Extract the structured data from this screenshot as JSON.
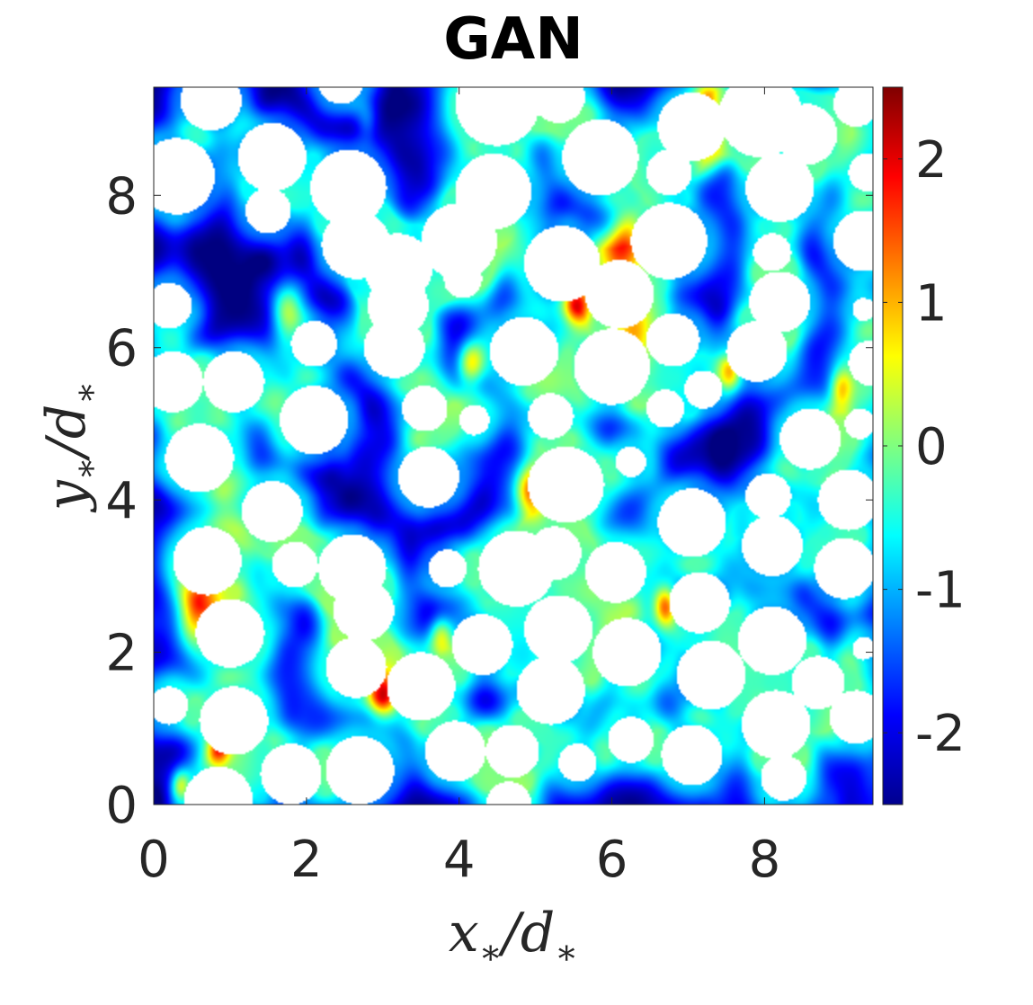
{
  "chart_data": {
    "type": "heatmap",
    "title": "GAN",
    "xlabel": {
      "main": "x",
      "sub": "∗",
      "sep": "/",
      "den": "d",
      "den_sub": "∗"
    },
    "ylabel": {
      "main": "y",
      "sub": "∗",
      "sep": "/",
      "den": "d",
      "den_sub": "∗"
    },
    "xlim": [
      0,
      9.42
    ],
    "ylim": [
      0,
      9.42
    ],
    "x_ticks": [
      0,
      2,
      4,
      6,
      8
    ],
    "y_ticks": [
      0,
      2,
      4,
      6,
      8
    ],
    "x_tick_labels": [
      "0",
      "2",
      "4",
      "6",
      "8"
    ],
    "y_tick_labels": [
      "0",
      "2",
      "4",
      "6",
      "8"
    ],
    "colorbar": {
      "colormap": "jet",
      "clim": [
        -2.5,
        2.5
      ],
      "ticks": [
        -2,
        -1,
        0,
        1,
        2
      ],
      "tick_labels": [
        "-2",
        "-1",
        "0",
        "1",
        "2"
      ]
    },
    "particles": [
      [
        0.75,
        9.25,
        0.4
      ],
      [
        2.45,
        9.5,
        0.3
      ],
      [
        4.5,
        9.2,
        0.55
      ],
      [
        5.3,
        9.3,
        0.35
      ],
      [
        7.95,
        9.05,
        0.55
      ],
      [
        9.2,
        9.2,
        0.3
      ],
      [
        0.3,
        8.25,
        0.5
      ],
      [
        1.55,
        8.5,
        0.45
      ],
      [
        2.55,
        8.1,
        0.5
      ],
      [
        4.45,
        8.05,
        0.5
      ],
      [
        5.85,
        8.5,
        0.5
      ],
      [
        6.75,
        8.3,
        0.3
      ],
      [
        7.05,
        8.9,
        0.45
      ],
      [
        8.2,
        8.1,
        0.45
      ],
      [
        8.55,
        8.8,
        0.4
      ],
      [
        9.35,
        8.3,
        0.25
      ],
      [
        1.5,
        7.8,
        0.3
      ],
      [
        2.65,
        7.35,
        0.45
      ],
      [
        3.2,
        7.05,
        0.45
      ],
      [
        4.0,
        7.4,
        0.5
      ],
      [
        5.35,
        7.1,
        0.5
      ],
      [
        6.75,
        7.4,
        0.5
      ],
      [
        8.1,
        7.25,
        0.25
      ],
      [
        9.3,
        7.4,
        0.4
      ],
      [
        4.05,
        6.9,
        0.25
      ],
      [
        6.1,
        6.7,
        0.45
      ],
      [
        6.8,
        6.1,
        0.35
      ],
      [
        8.2,
        6.6,
        0.4
      ],
      [
        9.3,
        6.5,
        0.15
      ],
      [
        0.2,
        6.55,
        0.3
      ],
      [
        3.2,
        6.55,
        0.4
      ],
      [
        2.1,
        6.05,
        0.3
      ],
      [
        3.15,
        6.0,
        0.4
      ],
      [
        4.85,
        5.95,
        0.45
      ],
      [
        6.0,
        5.75,
        0.5
      ],
      [
        7.9,
        5.95,
        0.4
      ],
      [
        9.4,
        5.8,
        0.3
      ],
      [
        0.25,
        5.55,
        0.4
      ],
      [
        1.05,
        5.55,
        0.4
      ],
      [
        2.1,
        5.05,
        0.45
      ],
      [
        3.55,
        5.2,
        0.3
      ],
      [
        4.2,
        5.05,
        0.2
      ],
      [
        5.2,
        5.1,
        0.3
      ],
      [
        6.7,
        5.2,
        0.25
      ],
      [
        7.2,
        5.45,
        0.25
      ],
      [
        8.6,
        4.8,
        0.4
      ],
      [
        9.25,
        5.0,
        0.2
      ],
      [
        0.6,
        4.55,
        0.45
      ],
      [
        3.6,
        4.3,
        0.4
      ],
      [
        5.4,
        4.2,
        0.5
      ],
      [
        6.25,
        4.5,
        0.2
      ],
      [
        8.05,
        4.05,
        0.3
      ],
      [
        9.1,
        4.0,
        0.4
      ],
      [
        1.55,
        3.85,
        0.4
      ],
      [
        0.7,
        3.2,
        0.45
      ],
      [
        1.85,
        3.15,
        0.3
      ],
      [
        2.6,
        3.1,
        0.45
      ],
      [
        3.85,
        3.1,
        0.25
      ],
      [
        4.75,
        3.1,
        0.5
      ],
      [
        5.25,
        3.3,
        0.35
      ],
      [
        6.05,
        3.05,
        0.4
      ],
      [
        7.05,
        3.7,
        0.45
      ],
      [
        8.1,
        3.4,
        0.4
      ],
      [
        9.05,
        3.1,
        0.4
      ],
      [
        1.0,
        2.25,
        0.45
      ],
      [
        2.75,
        2.55,
        0.4
      ],
      [
        2.65,
        1.8,
        0.4
      ],
      [
        4.3,
        2.1,
        0.4
      ],
      [
        5.3,
        2.3,
        0.45
      ],
      [
        6.2,
        2.0,
        0.45
      ],
      [
        7.15,
        2.65,
        0.4
      ],
      [
        8.1,
        2.15,
        0.45
      ],
      [
        8.7,
        1.6,
        0.35
      ],
      [
        9.3,
        2.05,
        0.15
      ],
      [
        1.05,
        1.1,
        0.45
      ],
      [
        3.5,
        1.55,
        0.45
      ],
      [
        5.2,
        1.5,
        0.45
      ],
      [
        6.25,
        0.85,
        0.3
      ],
      [
        7.3,
        1.7,
        0.45
      ],
      [
        8.15,
        1.05,
        0.45
      ],
      [
        9.2,
        1.15,
        0.35
      ],
      [
        0.2,
        1.3,
        0.25
      ],
      [
        1.8,
        0.4,
        0.4
      ],
      [
        2.7,
        0.45,
        0.45
      ],
      [
        3.95,
        0.7,
        0.4
      ],
      [
        4.7,
        0.7,
        0.35
      ],
      [
        5.55,
        0.55,
        0.25
      ],
      [
        7.05,
        0.65,
        0.4
      ],
      [
        8.25,
        0.35,
        0.3
      ],
      [
        0.85,
        0.05,
        0.45
      ],
      [
        4.65,
        0.0,
        0.3
      ]
    ],
    "hotspots": [
      [
        1.75,
        6.6,
        0.22,
        2.2
      ],
      [
        6.15,
        7.4,
        0.28,
        1.9
      ],
      [
        5.55,
        6.55,
        0.18,
        2.4
      ],
      [
        4.15,
        5.8,
        0.18,
        2.3
      ],
      [
        4.95,
        4.15,
        0.2,
        2.2
      ],
      [
        0.55,
        2.6,
        0.3,
        1.8
      ],
      [
        0.85,
        0.75,
        0.15,
        2.2
      ],
      [
        3.0,
        1.45,
        0.18,
        2.2
      ],
      [
        6.7,
        2.6,
        0.15,
        2.3
      ],
      [
        3.75,
        2.25,
        0.15,
        1.6
      ],
      [
        7.25,
        9.25,
        0.2,
        1.5
      ],
      [
        7.55,
        5.7,
        0.15,
        1.5
      ],
      [
        9.0,
        5.45,
        0.15,
        1.8
      ],
      [
        0.35,
        0.25,
        0.12,
        1.5
      ],
      [
        6.3,
        6.2,
        0.25,
        1.0
      ],
      [
        2.8,
        9.0,
        0.15,
        1.0
      ],
      [
        7.3,
        8.6,
        0.2,
        1.2
      ],
      [
        0.9,
        4.05,
        0.2,
        0.8
      ],
      [
        8.95,
        4.05,
        0.15,
        1.0
      ],
      [
        6.5,
        1.5,
        0.2,
        0.6
      ]
    ]
  }
}
